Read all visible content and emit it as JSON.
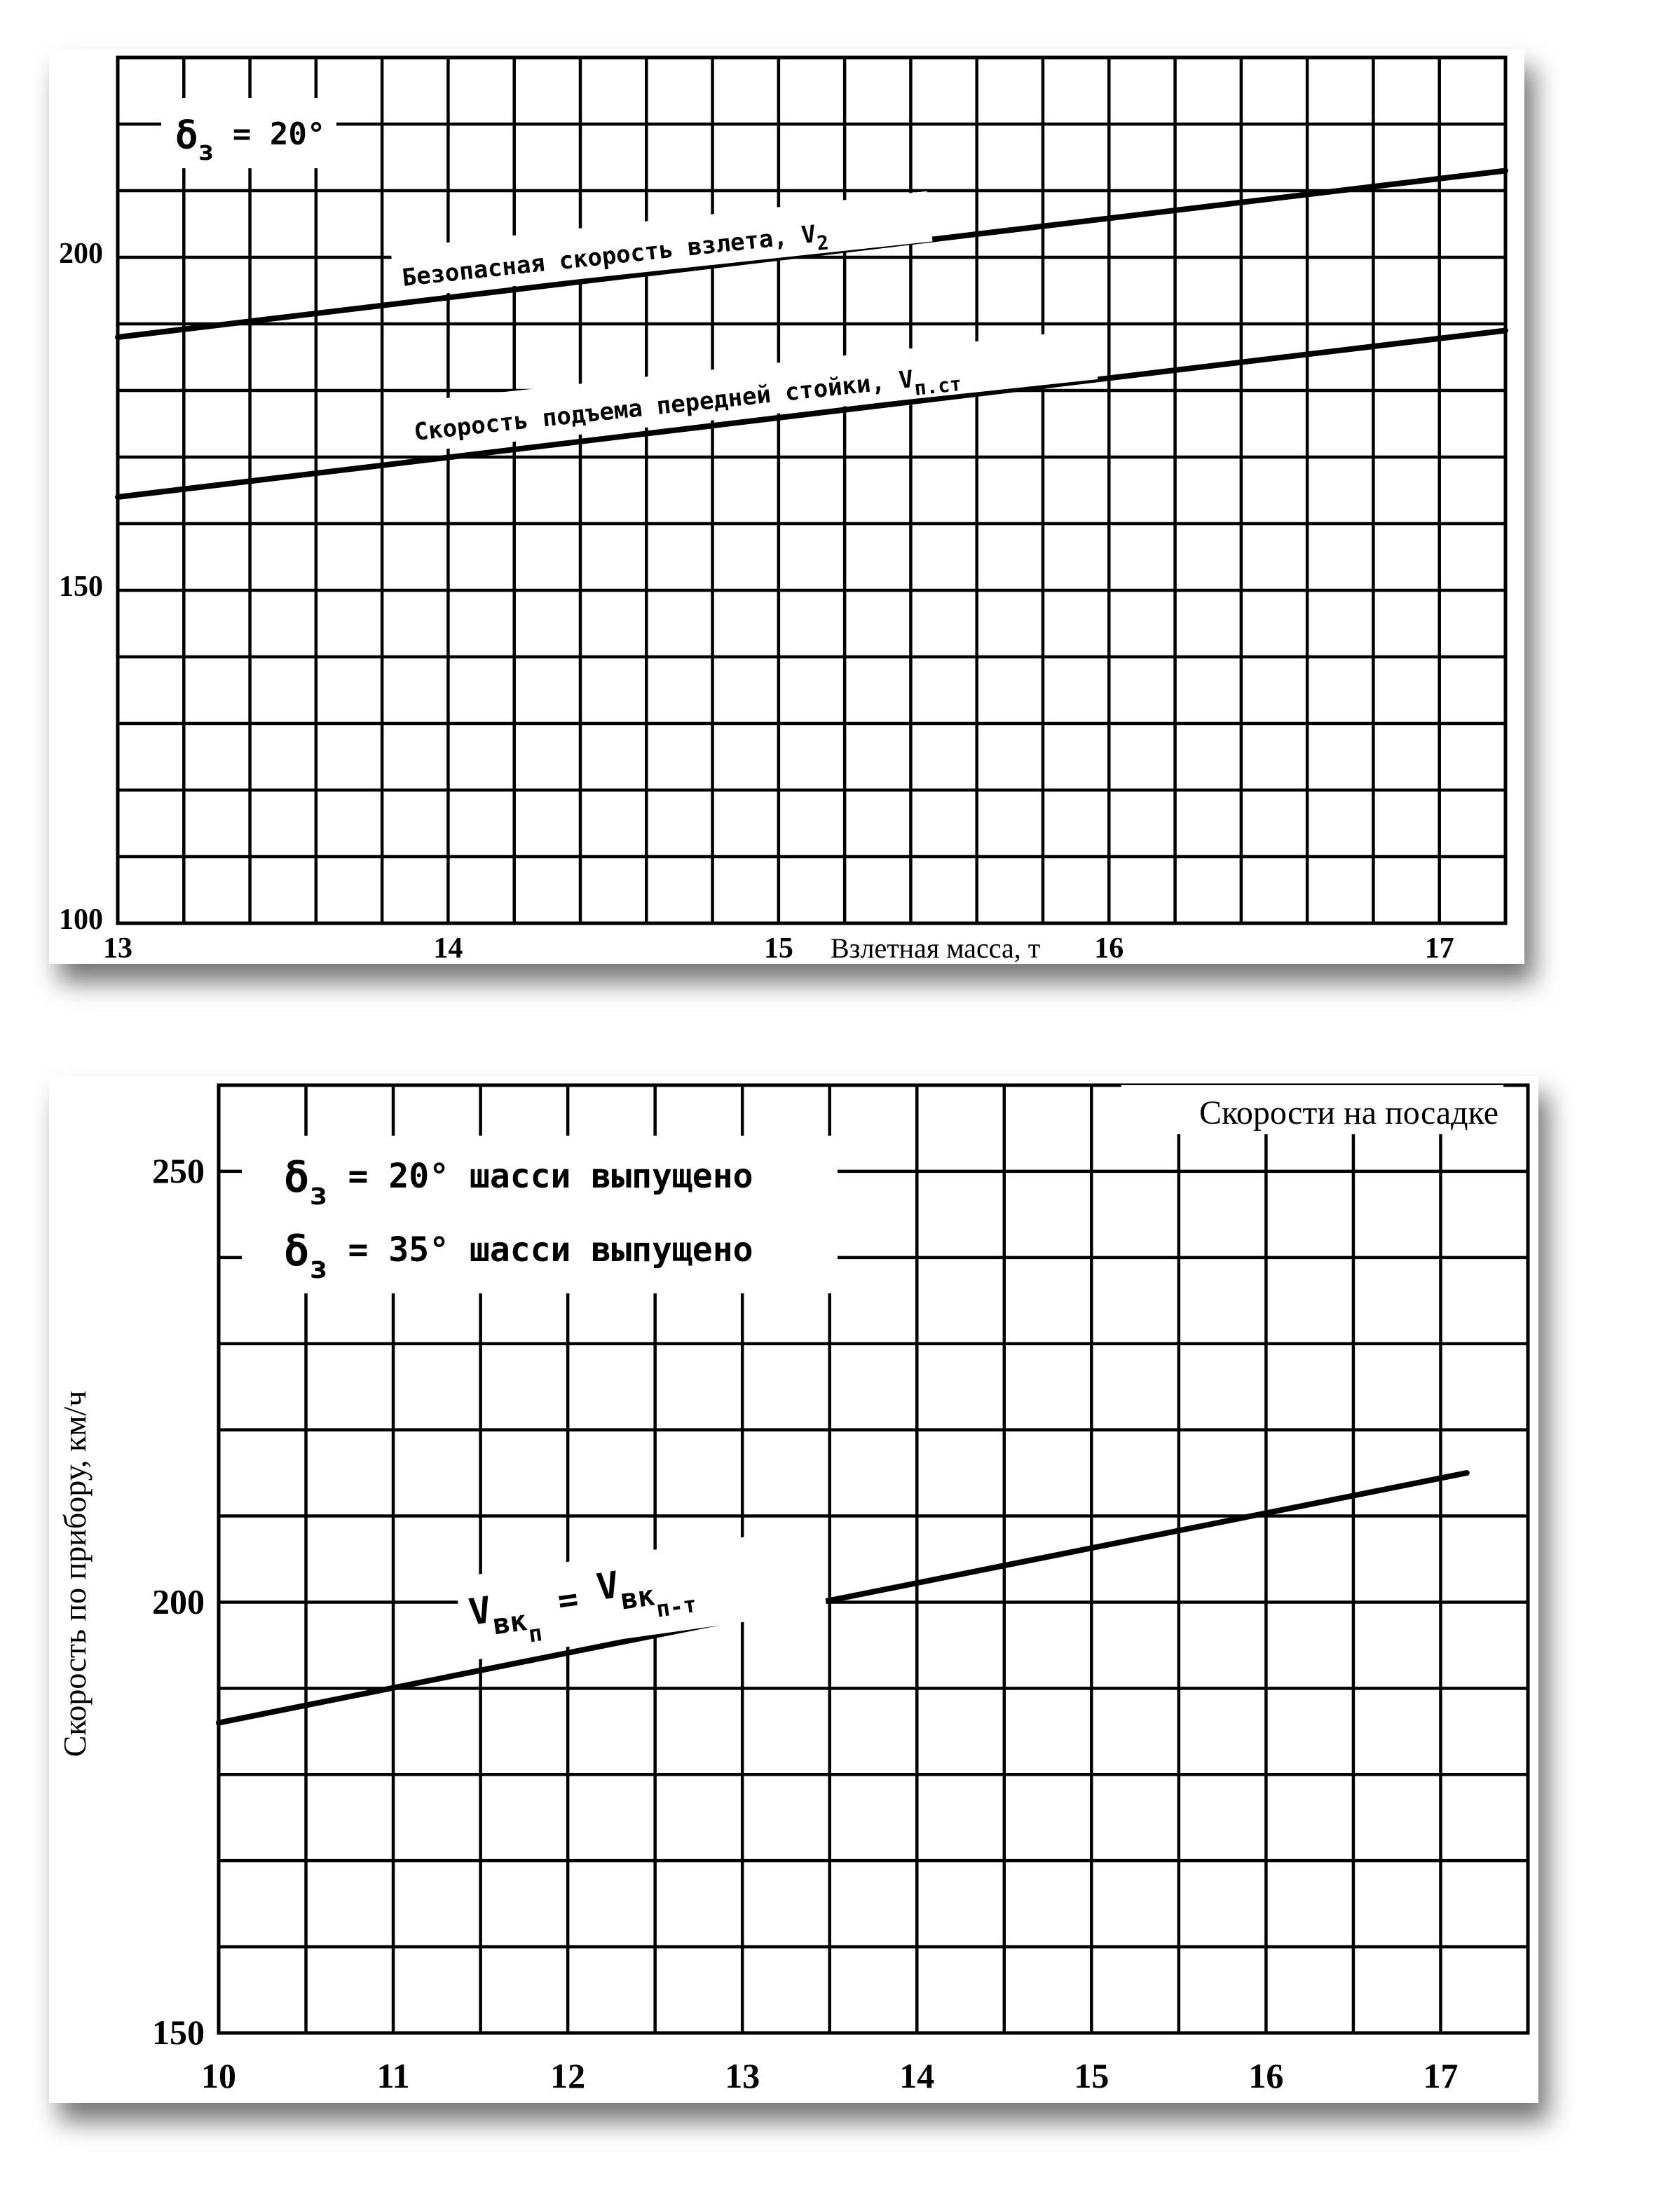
{
  "chart_data": [
    {
      "type": "line",
      "title": "",
      "xlabel": "Взлетная масса, т",
      "ylabel": "",
      "xlim": [
        13,
        17.2
      ],
      "ylim": [
        100,
        230
      ],
      "grid": true,
      "x_ticks": [
        "13",
        "14",
        "15",
        "16",
        "17"
      ],
      "y_ticks": [
        "100",
        "150",
        "200"
      ],
      "annotation": {
        "delta": "δ",
        "subscript": "з",
        "rest": " = 20°"
      },
      "series": [
        {
          "name": "Безопасная скорость взлета,  V",
          "name_sub": "2",
          "x": [
            13,
            17.2
          ],
          "y": [
            188,
            213
          ]
        },
        {
          "name": "Скорость подъема передней стойки,  V",
          "name_sub": "п.ст",
          "x": [
            13,
            17.2
          ],
          "y": [
            164,
            189
          ]
        }
      ]
    },
    {
      "type": "line",
      "title": "Скорости на посадке",
      "xlabel": "",
      "ylabel": "Скорость по прибору, км/ч",
      "xlim": [
        10,
        17.5
      ],
      "ylim": [
        150,
        260
      ],
      "grid": true,
      "x_ticks": [
        "10",
        "11",
        "12",
        "13",
        "14",
        "15",
        "16",
        "17"
      ],
      "y_ticks": [
        "150",
        "200",
        "250"
      ],
      "annotations": [
        {
          "delta": "δ",
          "subscript": "з",
          "rest": " = 20° шасси выпущено"
        },
        {
          "delta": "δ",
          "subscript": "з",
          "rest": " = 35° шасси выпущено"
        }
      ],
      "series": [
        {
          "name_main": "V",
          "name_sub": "вк",
          "name_subsub": "п",
          "name_eq": " = ",
          "name_main2": "V",
          "name_sub2": "вк",
          "name_subsub2": "п-т",
          "x": [
            10,
            17.15
          ],
          "y": [
            186,
            215
          ]
        }
      ]
    }
  ]
}
